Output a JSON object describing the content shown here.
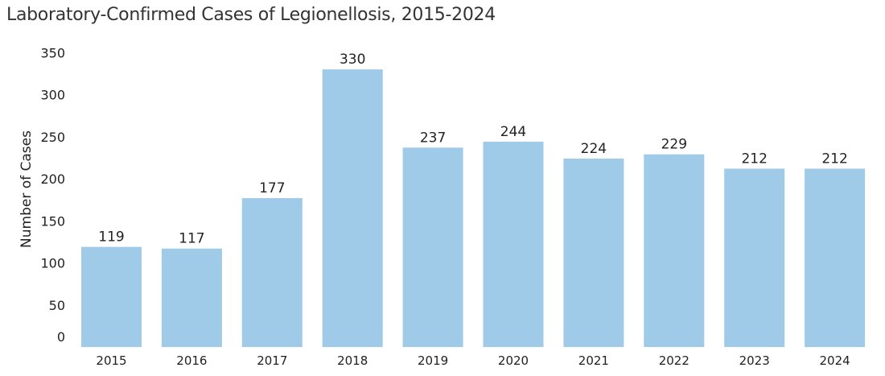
{
  "chart_data": {
    "type": "bar",
    "title": "Laboratory-Confirmed Cases of Legionellosis, 2015-2024",
    "xlabel": "",
    "ylabel": "Number of Cases",
    "ylim": [
      0,
      350
    ],
    "yticks": [
      0,
      50,
      100,
      150,
      200,
      250,
      300,
      350
    ],
    "categories": [
      "2015",
      "2016",
      "2017",
      "2018",
      "2019",
      "2020",
      "2021",
      "2022",
      "2023",
      "2024"
    ],
    "values": [
      119,
      117,
      177,
      330,
      237,
      244,
      224,
      229,
      212,
      212
    ],
    "bar_color": "#9fcae8",
    "grid": false,
    "data_labels": true
  }
}
